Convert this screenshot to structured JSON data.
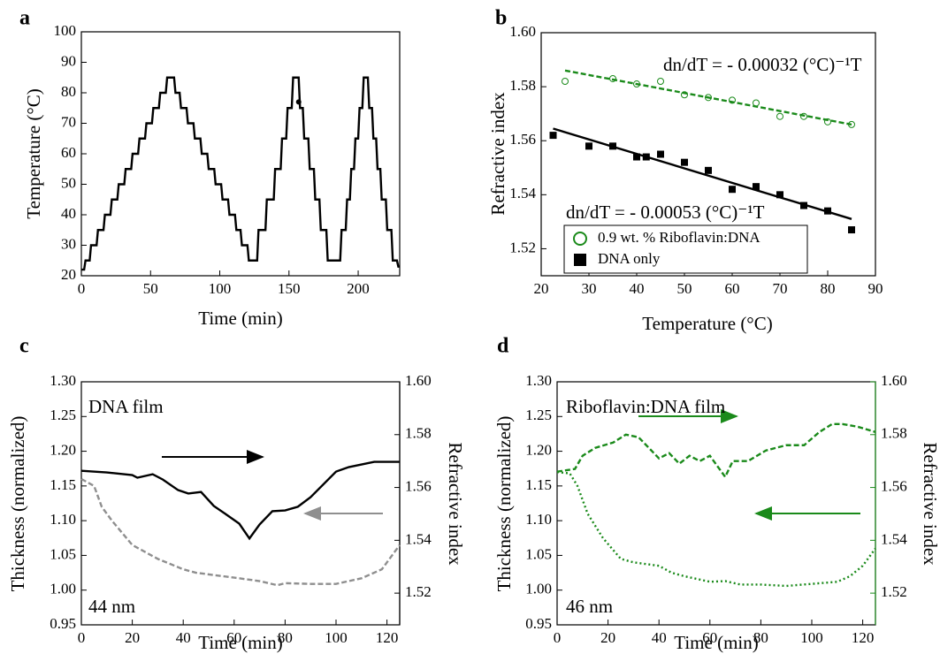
{
  "chart_data": [
    {
      "type": "line",
      "panel_label": "a",
      "xlabel": "Time (min)",
      "ylabel": "Temperature (°C)",
      "xlim": [
        0,
        230
      ],
      "xticks": [
        0,
        50,
        100,
        150,
        200
      ],
      "ylim": [
        20,
        100
      ],
      "yticks": [
        20,
        30,
        40,
        50,
        60,
        70,
        80,
        90,
        100
      ],
      "series": [
        {
          "color": "#000000",
          "line_style": "solid",
          "x": [
            0,
            2,
            3,
            6,
            7,
            11,
            12,
            16,
            17,
            21,
            22,
            26,
            27,
            31,
            32,
            36,
            37,
            41,
            42,
            46,
            47,
            51,
            52,
            56,
            57,
            61,
            62,
            67,
            68,
            71,
            72,
            76,
            77,
            81,
            82,
            86,
            87,
            91,
            92,
            96,
            97,
            101,
            102,
            106,
            107,
            111,
            112,
            115,
            116,
            120,
            121,
            127,
            128,
            133,
            134,
            139,
            140,
            144,
            145,
            148,
            149,
            152,
            153,
            157,
            158,
            160,
            161,
            164,
            165,
            168,
            169,
            172,
            173,
            177,
            178,
            187,
            188,
            191,
            192,
            194,
            195,
            197,
            198,
            200,
            201,
            203,
            204,
            207,
            208,
            210,
            211,
            213,
            214,
            216,
            217,
            220,
            221,
            224,
            225,
            228,
            229,
            230
          ],
          "values": [
            22,
            22,
            25,
            25,
            30,
            30,
            35,
            35,
            40,
            40,
            45,
            45,
            50,
            50,
            55,
            55,
            60,
            60,
            65,
            65,
            70,
            70,
            75,
            75,
            80,
            80,
            85,
            85,
            80,
            80,
            75,
            75,
            70,
            70,
            65,
            65,
            60,
            60,
            55,
            55,
            50,
            50,
            45,
            45,
            40,
            40,
            35,
            35,
            30,
            30,
            25,
            25,
            35,
            35,
            45,
            45,
            55,
            55,
            65,
            65,
            75,
            75,
            85,
            85,
            75,
            75,
            65,
            65,
            55,
            55,
            45,
            45,
            35,
            35,
            25,
            25,
            35,
            35,
            45,
            45,
            55,
            55,
            65,
            65,
            75,
            75,
            85,
            85,
            75,
            75,
            65,
            65,
            55,
            55,
            45,
            45,
            35,
            35,
            25,
            25,
            23,
            23
          ]
        },
        {
          "color": "#000000",
          "marker": "dot",
          "x": [
            157
          ],
          "values": [
            77
          ]
        }
      ]
    },
    {
      "type": "scatter",
      "panel_label": "b",
      "xlabel": "Temperature (°C)",
      "ylabel": "Refractive index",
      "xlim": [
        20,
        90
      ],
      "xticks": [
        20,
        30,
        40,
        50,
        60,
        70,
        80,
        90
      ],
      "ylim": [
        1.51,
        1.6
      ],
      "yticks": [
        1.52,
        1.54,
        1.56,
        1.58,
        {
          "value": 1.6,
          "label": "1.60"
        }
      ],
      "annotations": [
        "dn/dT = - 0.00032 (°C)⁻¹T",
        "dn/dT = - 0.00053 (°C)⁻¹T"
      ],
      "legend": "lower left",
      "series": [
        {
          "name": "0.9 wt. % Riboflavin:DNA",
          "color": "#1a8a1a",
          "marker": "open-circle",
          "x": [
            25,
            35,
            40,
            45,
            50,
            55,
            60,
            65,
            70,
            75,
            80,
            85
          ],
          "values": [
            1.582,
            1.583,
            1.581,
            1.582,
            1.577,
            1.576,
            1.575,
            1.574,
            1.569,
            1.569,
            1.567,
            1.566
          ]
        },
        {
          "name": "DNA only",
          "color": "#000000",
          "marker": "square",
          "x": [
            22.5,
            30,
            35,
            40,
            42,
            45,
            50,
            55,
            60,
            65,
            70,
            75,
            80,
            85
          ],
          "values": [
            1.562,
            1.558,
            1.558,
            1.554,
            1.554,
            1.555,
            1.552,
            1.549,
            1.542,
            1.543,
            1.54,
            1.536,
            1.534,
            1.527
          ]
        },
        {
          "color": "#1a8a1a",
          "line_style": "dashed",
          "x": [
            25,
            85
          ],
          "values": [
            1.586,
            1.566
          ]
        },
        {
          "color": "#000000",
          "line_style": "solid",
          "x": [
            22.5,
            85
          ],
          "values": [
            1.5645,
            1.531
          ]
        }
      ]
    },
    {
      "type": "line",
      "panel_label": "c",
      "xlabel": "Time (min)",
      "ylabel": "Thickness (normalized)",
      "y2label": "Refractive index",
      "ylabel_color": "#9a9a9a",
      "y2_color": "#000000",
      "annotations": [
        "DNA film",
        "44 nm"
      ],
      "xlim": [
        0,
        125
      ],
      "xticks": [
        0,
        20,
        40,
        60,
        80,
        100,
        120
      ],
      "ylim": [
        0.95,
        1.3
      ],
      "yticks": [
        0.95,
        {
          "value": 1,
          "label": "1.00"
        },
        1.05,
        {
          "value": 1.1,
          "label": "1.10"
        },
        1.15,
        {
          "value": 1.2,
          "label": "1.20"
        },
        1.25,
        {
          "value": 1.3,
          "label": "1.30"
        }
      ],
      "y2lim": [
        1.508,
        1.6
      ],
      "y2ticks": [
        1.52,
        1.54,
        1.56,
        1.58,
        {
          "value": 1.6,
          "label": "1.60"
        }
      ],
      "series": [
        {
          "color": "#000000",
          "line_style": "solid",
          "axis": "y2",
          "x": [
            0,
            10,
            20,
            22,
            28,
            32,
            38,
            42,
            47,
            52,
            57,
            62,
            66,
            70,
            75,
            80,
            85,
            90,
            100,
            105,
            110,
            115,
            125
          ],
          "values": [
            1.5663,
            1.5657,
            1.5647,
            1.5637,
            1.565,
            1.563,
            1.559,
            1.5577,
            1.5583,
            1.553,
            1.5497,
            1.5463,
            1.5407,
            1.546,
            1.551,
            1.5513,
            1.5527,
            1.5563,
            1.566,
            1.5677,
            1.5687,
            1.5697,
            1.5697
          ]
        },
        {
          "color": "#8f8f8f",
          "line_style": "dashed",
          "x": [
            0,
            5,
            8,
            12,
            20,
            30,
            40,
            45,
            60,
            70,
            77,
            80,
            90,
            100,
            110,
            118,
            125
          ],
          "values": [
            1.16,
            1.15,
            1.12,
            1.1,
            1.065,
            1.045,
            1.03,
            1.025,
            1.018,
            1.013,
            1.007,
            1.01,
            1.009,
            1.009,
            1.017,
            1.03,
            1.065
          ]
        }
      ]
    },
    {
      "type": "line",
      "panel_label": "d",
      "xlabel": "Time (min)",
      "ylabel": "Thickness (normalized)",
      "y2label": "Refractive index",
      "ylabel_color": "#1a8a1a",
      "y2_color": "#1a8a1a",
      "annotations": [
        "Riboflavin:DNA film",
        "46 nm"
      ],
      "xlim": [
        0,
        125
      ],
      "xticks": [
        0,
        20,
        40,
        60,
        80,
        100,
        120
      ],
      "ylim": [
        0.95,
        1.3
      ],
      "yticks": [
        0.95,
        {
          "value": 1,
          "label": "1.00"
        },
        1.05,
        {
          "value": 1.1,
          "label": "1.10"
        },
        1.15,
        {
          "value": 1.2,
          "label": "1.20"
        },
        1.25,
        {
          "value": 1.3,
          "label": "1.30"
        }
      ],
      "y2lim": [
        1.508,
        1.6
      ],
      "y2ticks": [
        1.52,
        1.54,
        1.56,
        1.58,
        {
          "value": 1.6,
          "label": "1.60"
        }
      ],
      "series": [
        {
          "color": "#1a8a1a",
          "line_style": "dashed",
          "axis": "y2",
          "x": [
            0,
            7,
            10,
            15,
            22,
            27,
            32,
            37,
            40,
            44,
            48,
            52,
            56,
            60,
            63,
            66,
            69,
            75,
            82,
            90,
            97,
            103,
            108,
            112,
            118,
            125
          ],
          "values": [
            1.566,
            1.567,
            1.572,
            1.575,
            1.577,
            1.58,
            1.579,
            1.574,
            1.571,
            1.573,
            1.569,
            1.572,
            1.57,
            1.572,
            1.568,
            1.564,
            1.57,
            1.57,
            1.574,
            1.576,
            1.576,
            1.581,
            1.584,
            1.584,
            1.583,
            1.581
          ]
        },
        {
          "color": "#1a8a1a",
          "line_style": "dotted",
          "x": [
            0,
            5,
            8,
            12,
            18,
            25,
            30,
            40,
            45,
            50,
            60,
            66,
            72,
            80,
            90,
            100,
            110,
            115,
            120,
            125
          ],
          "values": [
            1.17,
            1.168,
            1.15,
            1.11,
            1.075,
            1.045,
            1.04,
            1.035,
            1.025,
            1.02,
            1.012,
            1.013,
            1.008,
            1.008,
            1.006,
            1.009,
            1.012,
            1.02,
            1.035,
            1.06
          ]
        }
      ]
    }
  ]
}
